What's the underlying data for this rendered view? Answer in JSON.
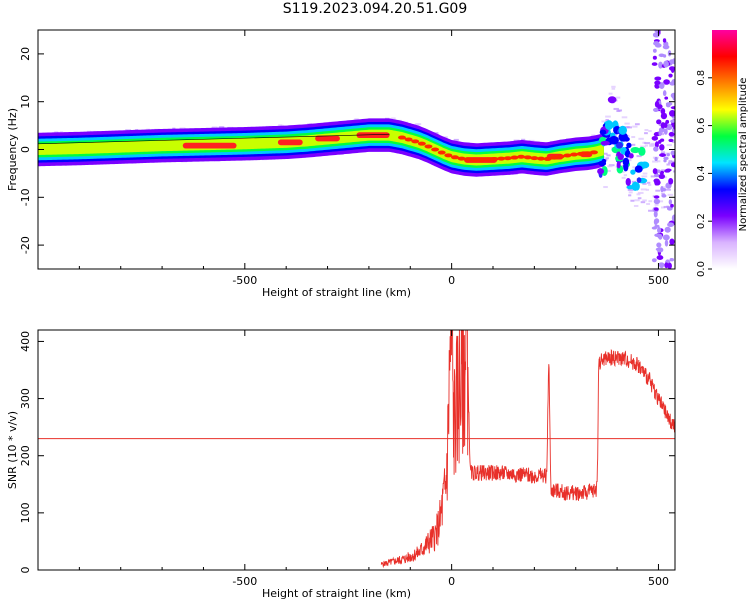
{
  "figure": {
    "title": "S119.2023.094.20.51.G09"
  },
  "chart_data": [
    {
      "type": "heatmap",
      "xlabel": "Height of straight line (km)",
      "ylabel": "Frequency (Hz)",
      "xlim": [
        -1000,
        540
      ],
      "ylim": [
        -25,
        25
      ],
      "xticks": [
        -500,
        0,
        500
      ],
      "yticks": [
        -20,
        -10,
        0,
        10,
        20
      ],
      "grid": false,
      "colorbar": {
        "label": "Normalized spectral amplitude",
        "range": [
          0,
          1
        ],
        "ticks": [
          0.0,
          0.2,
          0.4,
          0.6,
          0.8
        ],
        "tick_labels": [
          "0.0",
          "0.2",
          "0.4",
          "0.6",
          "0.8"
        ],
        "colors": [
          "#ffffff",
          "#d9b3ff",
          "#7a00ff",
          "#0000ff",
          "#00e5ff",
          "#00ff40",
          "#ffff00",
          "#ff8000",
          "#ff0000",
          "#ff00a0"
        ]
      },
      "ridge": {
        "x": [
          -1000,
          -900,
          -800,
          -700,
          -600,
          -500,
          -400,
          -350,
          -300,
          -250,
          -200,
          -150,
          -120,
          -100,
          -80,
          -60,
          -40,
          -20,
          0,
          30,
          60,
          100,
          140,
          170,
          200,
          230,
          260,
          300,
          330,
          350,
          370,
          380,
          390,
          400,
          420,
          440,
          460,
          480,
          500,
          520,
          540
        ],
        "frequency_hz": [
          0,
          0.2,
          0.5,
          0.8,
          1,
          1.2,
          1.5,
          1.8,
          2.2,
          2.6,
          3,
          3,
          2.5,
          2,
          1.5,
          0.8,
          0,
          -0.8,
          -1.5,
          -2,
          -2.2,
          -2,
          -1.8,
          -1.5,
          -1.8,
          -2,
          -1.5,
          -1,
          -0.8,
          -0.5,
          0,
          3,
          6,
          2,
          -2,
          -4,
          -2,
          -5,
          -3,
          -4,
          -3
        ]
      },
      "peak_bands": [
        {
          "x_start": -650,
          "x_end": -520,
          "frequency_hz": 0.8
        },
        {
          "x_start": -420,
          "x_end": -360,
          "frequency_hz": 1.5
        },
        {
          "x_start": -330,
          "x_end": -270,
          "frequency_hz": 2.3
        },
        {
          "x_start": -230,
          "x_end": -150,
          "frequency_hz": 3
        },
        {
          "x_start": 30,
          "x_end": 110,
          "frequency_hz": -2.2
        },
        {
          "x_start": 230,
          "x_end": 270,
          "frequency_hz": -1.5
        },
        {
          "x_start": 310,
          "x_end": 340,
          "frequency_hz": -1
        }
      ]
    },
    {
      "type": "line",
      "xlabel": "Height of straight line (km)",
      "ylabel": "SNR (10 * v/v)",
      "xlim": [
        -1000,
        540
      ],
      "ylim": [
        0,
        420
      ],
      "xticks": [
        -500,
        0,
        500
      ],
      "yticks": [
        0,
        100,
        200,
        300,
        400
      ],
      "grid": false,
      "threshold": 230,
      "series": [
        {
          "color": "#e8302a",
          "x": [
            -170,
            -140,
            -110,
            -80,
            -60,
            -40,
            -30,
            -20,
            -15,
            -10,
            -5,
            0,
            5,
            10,
            15,
            20,
            25,
            30,
            35,
            38,
            45,
            100,
            150,
            200,
            230,
            235,
            238,
            240,
            280,
            320,
            350,
            353,
            355,
            360,
            370,
            390,
            420,
            450,
            480,
            500,
            520,
            540
          ],
          "y": [
            10,
            15,
            20,
            30,
            45,
            60,
            80,
            120,
            140,
            200,
            350,
            420,
            250,
            280,
            300,
            320,
            340,
            360,
            380,
            390,
            170,
            170,
            168,
            165,
            165,
            380,
            220,
            140,
            135,
            135,
            140,
            180,
            360,
            365,
            370,
            372,
            370,
            360,
            330,
            300,
            270,
            250
          ]
        }
      ]
    }
  ]
}
